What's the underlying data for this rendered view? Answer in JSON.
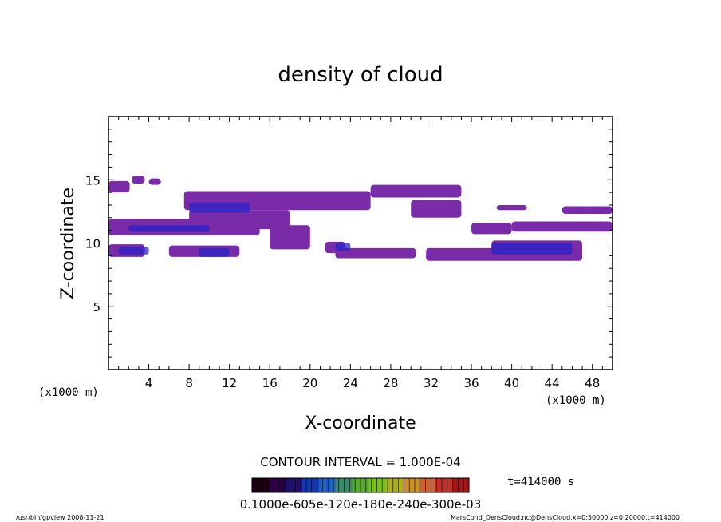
{
  "chart_data": {
    "type": "heatmap",
    "title": "density of cloud",
    "xlabel": "X-coordinate",
    "ylabel": "Z-coordinate",
    "x_unit_left": "(x1000 m)",
    "x_unit_right": "(x1000 m)",
    "xlim": [
      0,
      50
    ],
    "ylim": [
      0,
      20
    ],
    "xticks": [
      "4",
      "8",
      "12",
      "16",
      "20",
      "24",
      "28",
      "32",
      "36",
      "40",
      "44",
      "48"
    ],
    "yticks": [
      "5",
      "10",
      "15"
    ],
    "contour_interval": "CONTOUR INTERVAL = 1.000E-04",
    "time_label": "t=414000 s",
    "colorbar_labels": "0.1000e-605e-120e-180e-240e-300e-03",
    "colorbar_colors": [
      "#1a0010",
      "#2a0040",
      "#20106a",
      "#1438b0",
      "#2060c0",
      "#3c8a6c",
      "#5aa830",
      "#78c020",
      "#a8b020",
      "#c89028",
      "#d06030",
      "#c03028",
      "#a01818"
    ],
    "cloud_colors": {
      "fill": "#7a2ca8",
      "dark": "#2a22c8",
      "mid": "#5a30c0"
    },
    "footer_left": "/usr/bin/gpview  2008-11-21",
    "footer_right": "MarsCond_DensCloud.nc@DensCloud,x=0:50000,z=0:20000,t=414000",
    "regions": [
      {
        "x": [
          0,
          2.1
        ],
        "z": [
          14,
          14.9
        ]
      },
      {
        "x": [
          2.3,
          3.6
        ],
        "z": [
          14.7,
          15.3
        ]
      },
      {
        "x": [
          4,
          5.2
        ],
        "z": [
          14.6,
          15.1
        ]
      },
      {
        "x": [
          7.5,
          26
        ],
        "z": [
          12.6,
          14.1
        ]
      },
      {
        "x": [
          26,
          35
        ],
        "z": [
          13.6,
          14.6
        ]
      },
      {
        "x": [
          30,
          35
        ],
        "z": [
          12,
          13.4
        ]
      },
      {
        "x": [
          0,
          15
        ],
        "z": [
          10.6,
          11.9
        ]
      },
      {
        "x": [
          0,
          2
        ],
        "z": [
          10.6,
          11.2
        ]
      },
      {
        "x": [
          8,
          18
        ],
        "z": [
          11.1,
          12.6
        ]
      },
      {
        "x": [
          16,
          20
        ],
        "z": [
          9.5,
          11.4
        ]
      },
      {
        "x": [
          0,
          3.6
        ],
        "z": [
          8.9,
          9.9
        ]
      },
      {
        "x": [
          6,
          13
        ],
        "z": [
          8.9,
          9.8
        ]
      },
      {
        "x": [
          21.5,
          23.5
        ],
        "z": [
          9.2,
          10.1
        ]
      },
      {
        "x": [
          22.5,
          30.5
        ],
        "z": [
          8.8,
          9.6
        ]
      },
      {
        "x": [
          31.5,
          47
        ],
        "z": [
          8.6,
          9.6
        ]
      },
      {
        "x": [
          38,
          47
        ],
        "z": [
          9.1,
          10.2
        ]
      },
      {
        "x": [
          36,
          40
        ],
        "z": [
          10.7,
          11.6
        ]
      },
      {
        "x": [
          40,
          50
        ],
        "z": [
          10.9,
          11.7
        ]
      },
      {
        "x": [
          38.5,
          41.5
        ],
        "z": [
          12.6,
          13
        ]
      },
      {
        "x": [
          45,
          50
        ],
        "z": [
          12.3,
          12.9
        ]
      },
      {
        "x": [
          12,
          18
        ],
        "z": [
          13.3,
          14.1
        ]
      }
    ],
    "dark_regions": [
      {
        "x": [
          8,
          14
        ],
        "z": [
          12.4,
          13.2
        ]
      },
      {
        "x": [
          9,
          12
        ],
        "z": [
          8.9,
          9.6
        ]
      },
      {
        "x": [
          1,
          4
        ],
        "z": [
          9.1,
          9.7
        ]
      },
      {
        "x": [
          22.5,
          24
        ],
        "z": [
          9.4,
          10
        ]
      },
      {
        "x": [
          38,
          46
        ],
        "z": [
          9.1,
          10
        ]
      },
      {
        "x": [
          2,
          10
        ],
        "z": [
          10.9,
          11.4
        ]
      }
    ]
  }
}
